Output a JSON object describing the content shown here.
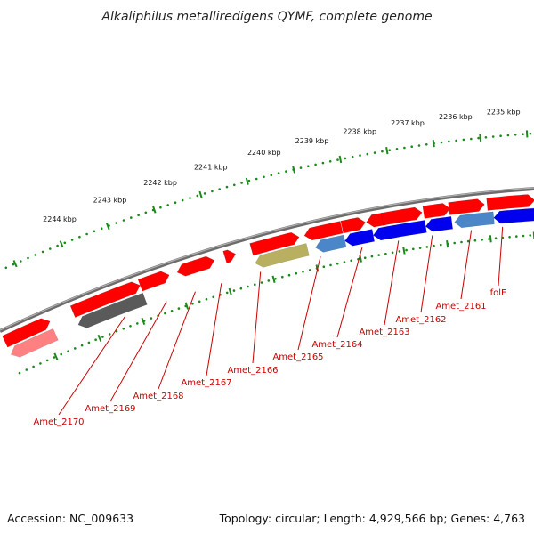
{
  "title": "Alkaliphilus metalliredigens QYMF, complete genome",
  "footer": {
    "accession": "Accession: NC_009633",
    "topology": "Topology: circular; Length: 4,929,566 bp; Genes: 4,763"
  },
  "colors": {
    "forward_gene": "#ff0000",
    "reverse_gene": "#0000ee",
    "reverse_gene_alt": "#4a86c8",
    "pseudo_gene": "#b8b060",
    "other_gene": "#5a5a5a",
    "pale_gene": "#ff8080",
    "scale_ticks": "#1a8a1a",
    "backbone": "#808080",
    "label_text": "#cc0000"
  },
  "scale_labels": [
    "2235 kbp",
    "2236 kbp",
    "2237 kbp",
    "2238 kbp",
    "2239 kbp",
    "2240 kbp",
    "2241 kbp",
    "2242 kbp",
    "2243 kbp",
    "2244 kbp"
  ],
  "gene_labels": [
    "folE",
    "Amet_2161",
    "Amet_2162",
    "Amet_2163",
    "Amet_2164",
    "Amet_2165",
    "Amet_2166",
    "Amet_2167",
    "Amet_2168",
    "Amet_2169",
    "Amet_2170"
  ]
}
